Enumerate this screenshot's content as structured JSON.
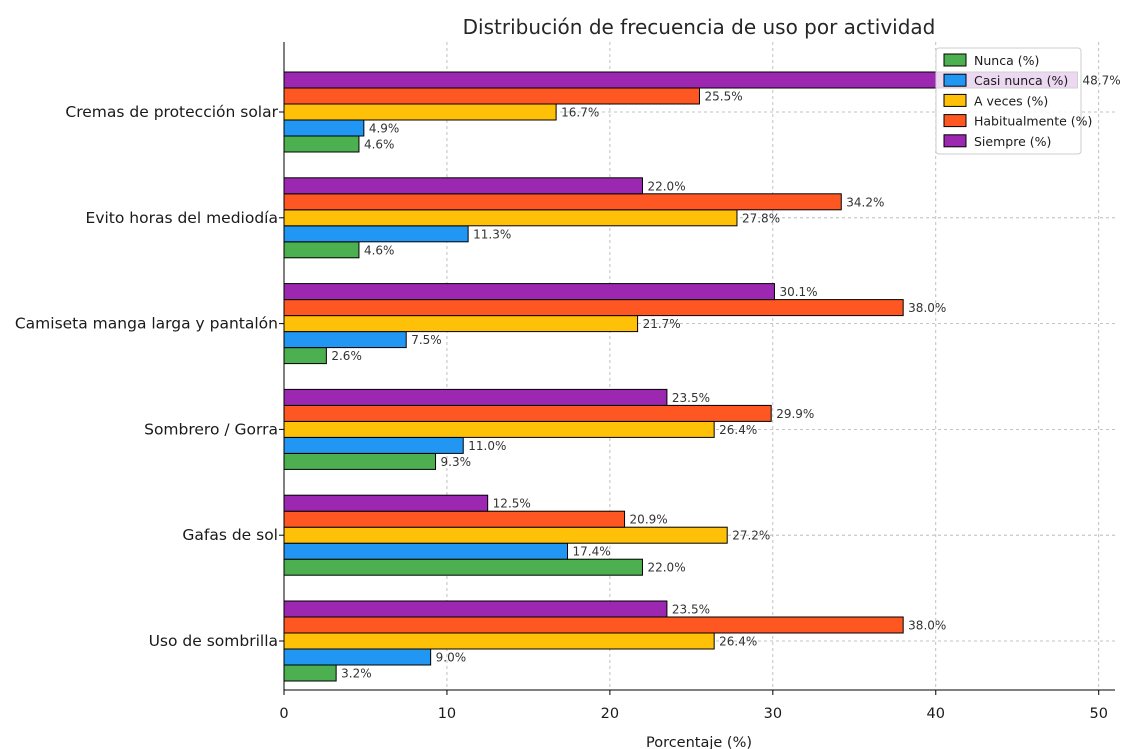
{
  "chart_data": {
    "type": "bar",
    "orientation": "horizontal",
    "title": "Distribución de frecuencia de uso por actividad",
    "xlabel": "Porcentaje (%)",
    "ylabel": "",
    "xlim": [
      0,
      51
    ],
    "xticks": [
      "0",
      "10",
      "20",
      "30",
      "40",
      "50"
    ],
    "grid": true,
    "legend_position": "top-right",
    "categories": [
      "Cremas de protección solar",
      "Evito horas del mediodía",
      "Camiseta manga larga y pantalón",
      "Sombrero / Gorra",
      "Gafas de sol",
      "Uso de sombrilla"
    ],
    "series": [
      {
        "name": "Nunca (%)",
        "color": "#4caf50",
        "values": [
          4.6,
          4.6,
          2.6,
          9.3,
          22.0,
          3.2
        ],
        "labels": [
          "4.6%",
          "4.6%",
          "2.6%",
          "9.3%",
          "22.0%",
          "3.2%"
        ]
      },
      {
        "name": "Casi nunca (%)",
        "color": "#2196f3",
        "values": [
          4.9,
          11.3,
          7.5,
          11.0,
          17.4,
          9.0
        ],
        "labels": [
          "4.9%",
          "11.3%",
          "7.5%",
          "11.0%",
          "17.4%",
          "9.0%"
        ]
      },
      {
        "name": "A veces (%)",
        "color": "#ffc107",
        "values": [
          16.7,
          27.8,
          21.7,
          26.4,
          27.2,
          26.4
        ],
        "labels": [
          "16.7%",
          "27.8%",
          "21.7%",
          "26.4%",
          "27.2%",
          "26.4%"
        ]
      },
      {
        "name": "Habitualmente (%)",
        "color": "#ff5722",
        "values": [
          25.5,
          34.2,
          38.0,
          29.9,
          20.9,
          38.0
        ],
        "labels": [
          "25.5%",
          "34.2%",
          "38.0%",
          "29.9%",
          "20.9%",
          "38.0%"
        ]
      },
      {
        "name": "Siempre (%)",
        "color": "#9c27b0",
        "values": [
          48.7,
          22.0,
          30.1,
          23.5,
          12.5,
          23.5
        ],
        "labels": [
          "48.7%",
          "22.0%",
          "30.1%",
          "23.5%",
          "12.5%",
          "23.5%"
        ]
      }
    ]
  }
}
